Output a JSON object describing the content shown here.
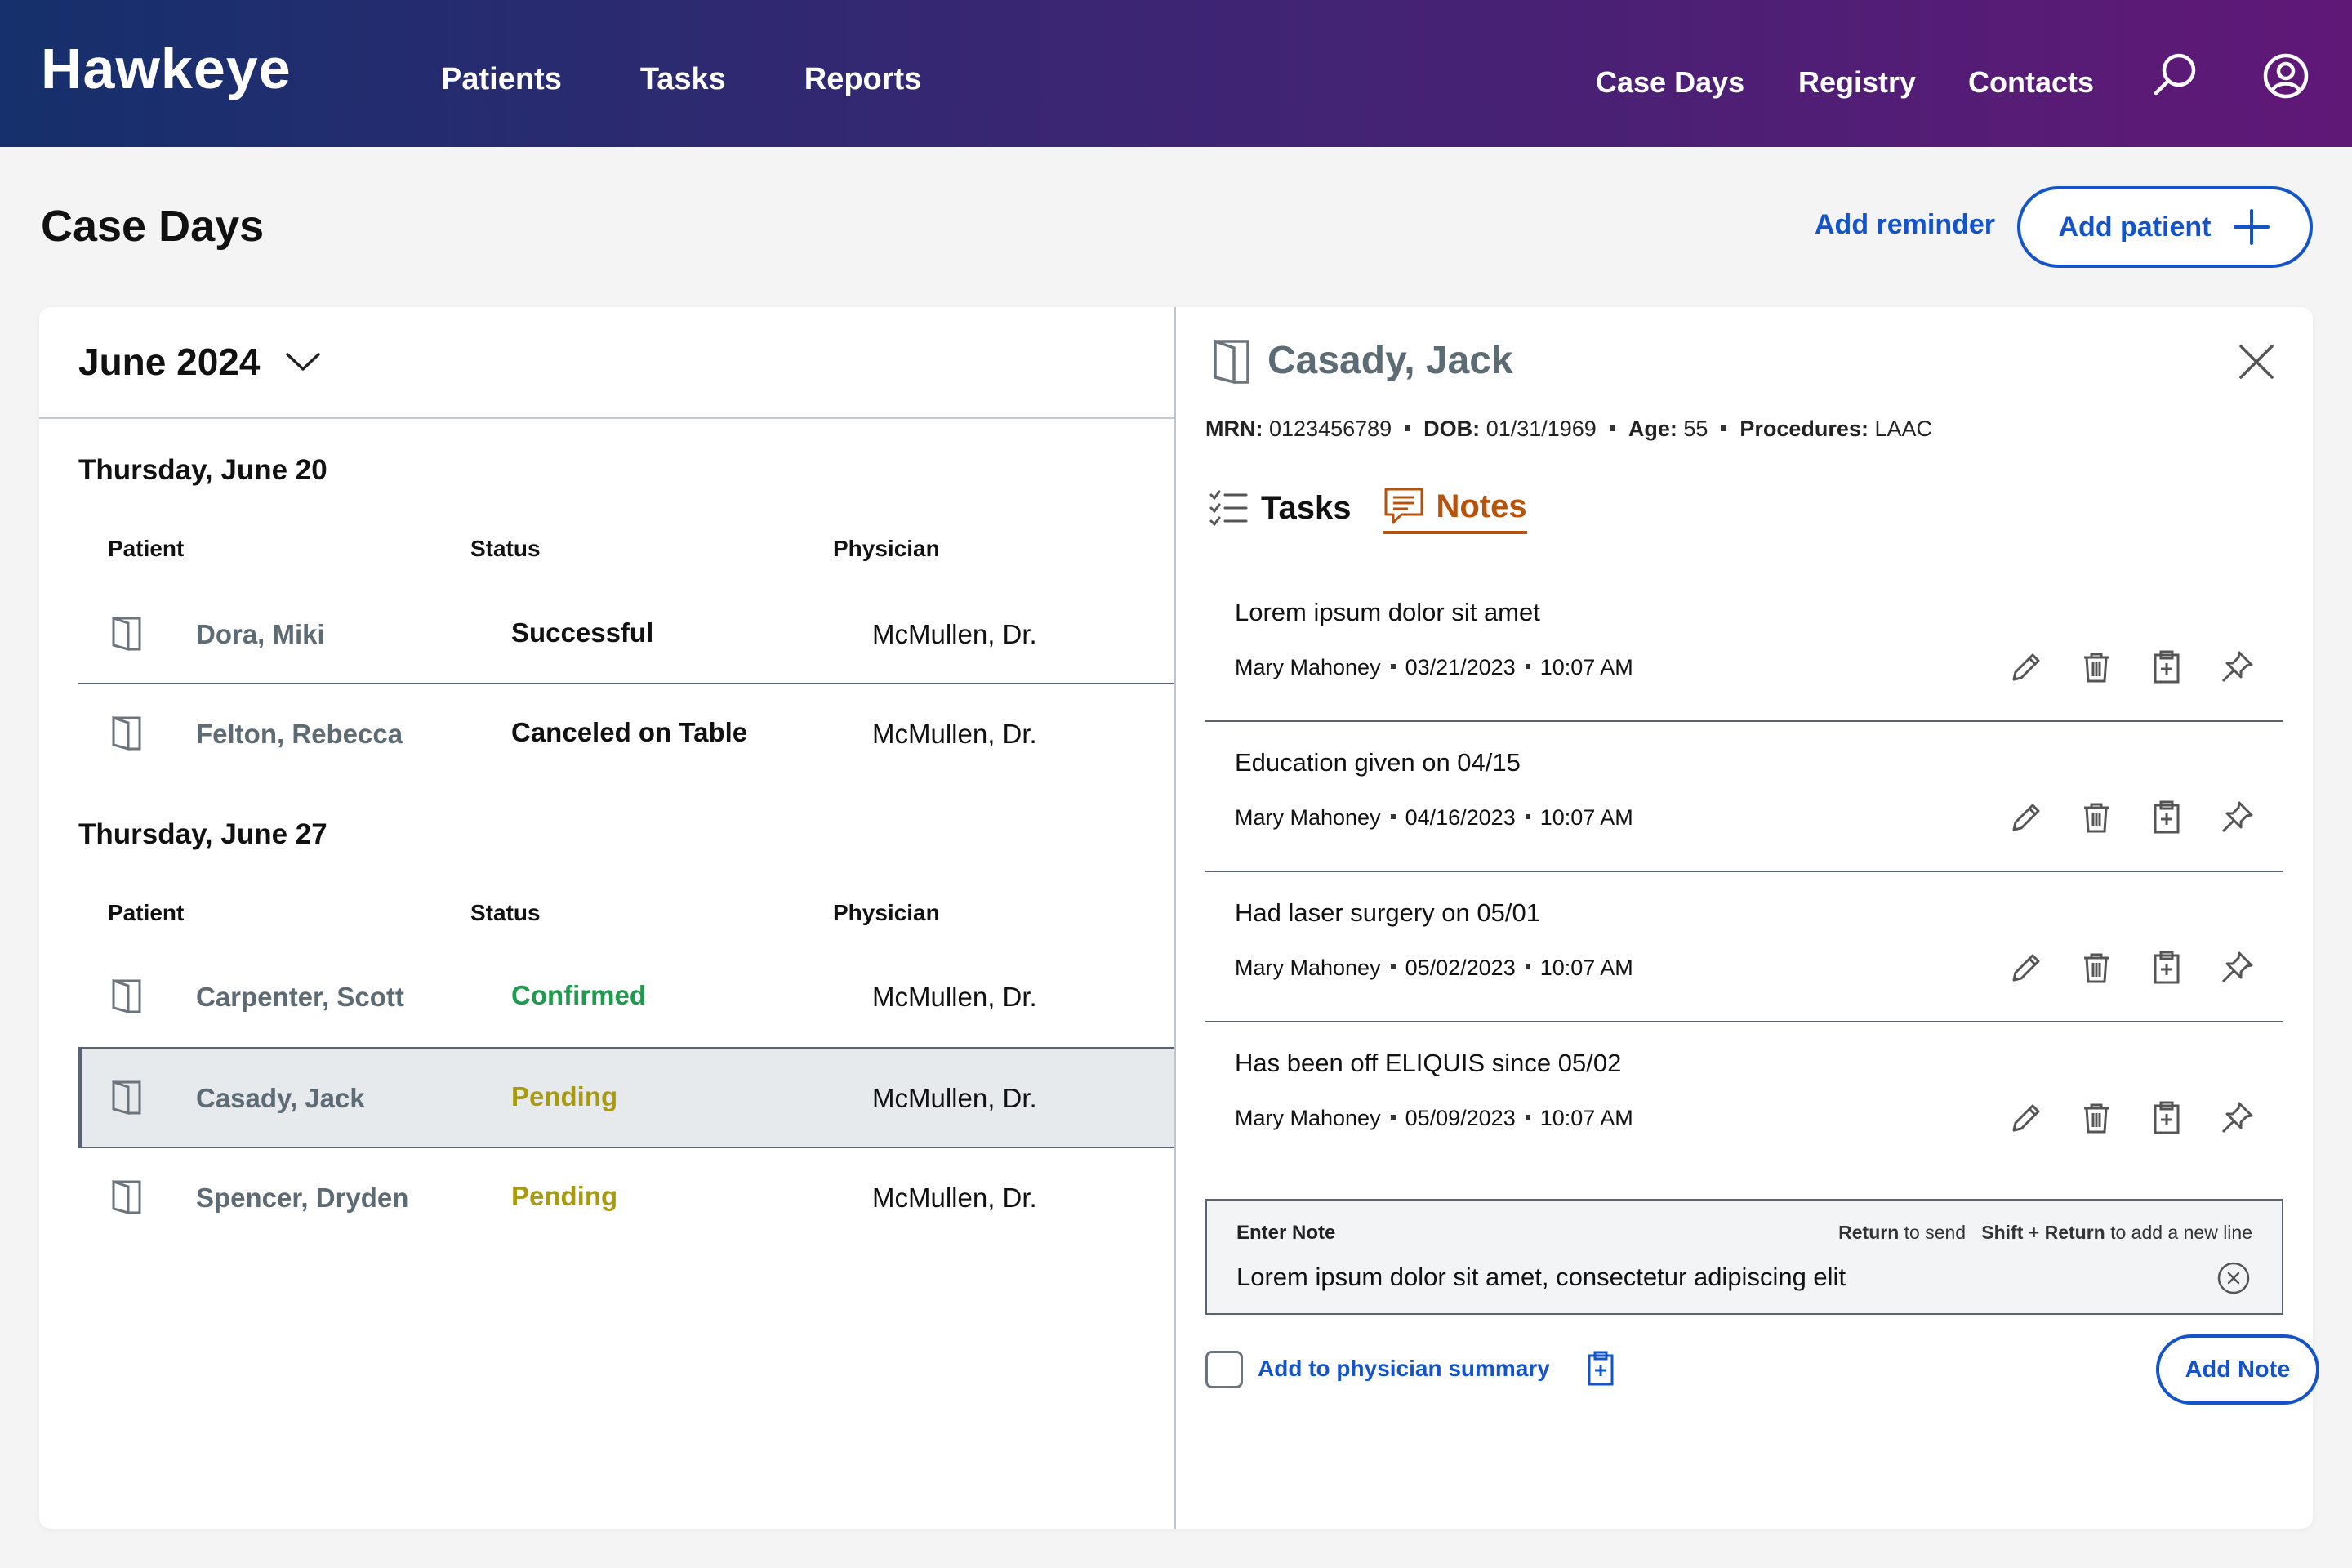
{
  "nav": {
    "brand": "Hawkeye",
    "left_items": [
      "Patients",
      "Tasks",
      "Reports"
    ],
    "right_items": [
      "Case Days",
      "Registry",
      "Contacts"
    ],
    "search_icon": "search-icon",
    "account_icon": "user-circle-icon"
  },
  "page": {
    "title": "Case Days",
    "add_reminder": "Add reminder",
    "add_patient": "Add patient"
  },
  "calendar": {
    "month": "June 2024",
    "columns": [
      "Patient",
      "Status",
      "Physician"
    ],
    "days": [
      {
        "title": "Thursday, June 20",
        "rows": [
          {
            "patient": "Dora, Miki",
            "status": "Successful",
            "physician": "McMullen, Dr."
          },
          {
            "patient": "Felton, Rebecca",
            "status": "Canceled on Table",
            "physician": "McMullen, Dr."
          }
        ]
      },
      {
        "title": "Thursday, June 27",
        "rows": [
          {
            "patient": "Carpenter, Scott",
            "status": "Confirmed",
            "physician": "McMullen, Dr."
          },
          {
            "patient": "Casady, Jack",
            "status": "Pending",
            "physician": "McMullen, Dr."
          },
          {
            "patient": "Spencer, Dryden",
            "status": "Pending",
            "physician": "McMullen, Dr."
          }
        ]
      }
    ]
  },
  "status_colors": {
    "Successful": "#111111",
    "Canceled on Table": "#111111",
    "Confirmed": "#1f9a4e",
    "Pending": "#a89a12"
  },
  "detail": {
    "name": "Casady, Jack",
    "mrn_label": "MRN:",
    "mrn": "0123456789",
    "dob_label": "DOB:",
    "dob": "01/31/1969",
    "age_label": "Age:",
    "age": "55",
    "procedures_label": "Procedures:",
    "procedures": "LAAC",
    "tabs": [
      {
        "label": "Tasks",
        "icon": "checklist-icon"
      },
      {
        "label": "Notes",
        "icon": "note-icon"
      }
    ],
    "notes": [
      {
        "text": "Lorem ipsum dolor sit amet",
        "author": "Mary Mahoney",
        "date": "03/21/2023",
        "time": "10:07 AM"
      },
      {
        "text": "Education given on 04/15",
        "author": "Mary Mahoney",
        "date": "04/16/2023",
        "time": "10:07 AM"
      },
      {
        "text": "Had laser surgery on 05/01",
        "author": "Mary Mahoney",
        "date": "05/02/2023",
        "time": "10:07 AM"
      },
      {
        "text": "Has been off ELIQUIS since 05/02",
        "author": "Mary Mahoney",
        "date": "05/09/2023",
        "time": "10:07 AM"
      }
    ],
    "note_actions": [
      "pencil-icon",
      "trash-icon",
      "clipboard-plus-icon",
      "pin-icon"
    ],
    "entry": {
      "label": "Enter Note",
      "hint_return": "Return",
      "hint_send": "to send",
      "hint_shift": "Shift + Return",
      "hint_newline": "to add a new line",
      "value": "Lorem ipsum dolor sit amet, consectetur adipiscing elit"
    },
    "summary_label": "Add to physician summary",
    "add_note": "Add Note"
  },
  "colors": {
    "accent": "#1454c8",
    "notes_tab": "#b5530c",
    "nav_start": "#15306c",
    "nav_end": "#601877"
  }
}
